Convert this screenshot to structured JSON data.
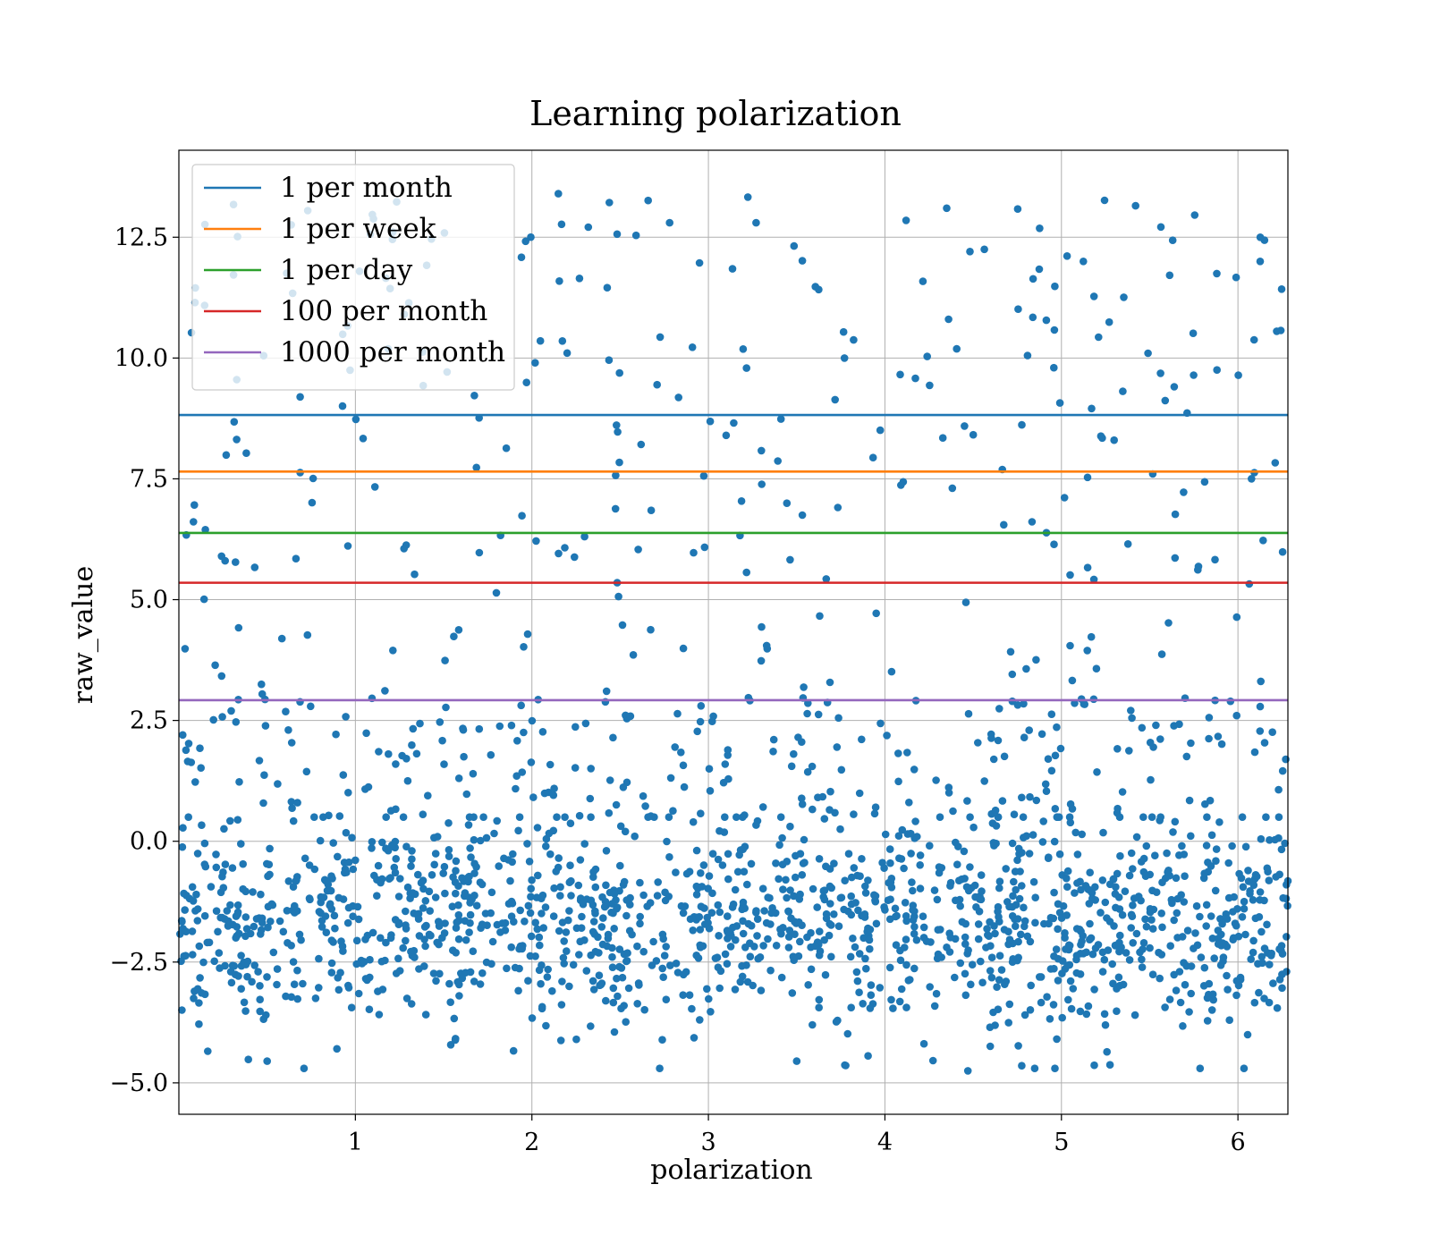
{
  "chart_data": {
    "type": "scatter",
    "title": "Learning polarization",
    "xlabel": "polarization",
    "ylabel": "raw_value",
    "xlim": [
      0,
      6.283
    ],
    "ylim": [
      -5.65,
      14.3
    ],
    "xticks": [
      1,
      2,
      3,
      4,
      5,
      6
    ],
    "yticks": [
      -5.0,
      -2.5,
      0.0,
      2.5,
      5.0,
      7.5,
      10.0,
      12.5
    ],
    "ytick_labels": [
      "−5.0",
      "−2.5",
      "0.0",
      "2.5",
      "5.0",
      "7.5",
      "10.0",
      "12.5"
    ],
    "grid": true,
    "legend_position": "top-left",
    "point_color": "#1f77b4",
    "points_generation": {
      "count": 2000,
      "x_range": [
        0,
        6.283
      ],
      "low_cluster_fraction": 0.74,
      "low_cluster_range": [
        -4.7,
        0.5
      ],
      "mid_band_fraction": 0.12,
      "mid_band_range": [
        0.5,
        3.0
      ],
      "upper_fraction": 0.14,
      "upper_range": [
        3.0,
        13.4
      ]
    },
    "highlighted_points": [
      {
        "x": 2.15,
        "y": 13.4
      },
      {
        "x": 5.42,
        "y": 13.15
      },
      {
        "x": 4.35,
        "y": 13.1
      },
      {
        "x": 0.73,
        "y": 13.05
      },
      {
        "x": 4.12,
        "y": 12.85
      },
      {
        "x": 2.78,
        "y": 12.8
      },
      {
        "x": 3.27,
        "y": 12.8
      },
      {
        "x": 4.47,
        "y": -4.75
      },
      {
        "x": 3.5,
        "y": -4.55
      },
      {
        "x": 0.5,
        "y": -4.55
      }
    ],
    "hlines": [
      {
        "name": "1 per month",
        "y": 8.82,
        "color": "#1f77b4"
      },
      {
        "name": "1 per week",
        "y": 7.65,
        "color": "#ff7f0e"
      },
      {
        "name": "1 per day",
        "y": 6.38,
        "color": "#2ca02c"
      },
      {
        "name": "100 per month",
        "y": 5.35,
        "color": "#d62728"
      },
      {
        "name": "1000 per month",
        "y": 2.92,
        "color": "#9467bd"
      }
    ]
  }
}
